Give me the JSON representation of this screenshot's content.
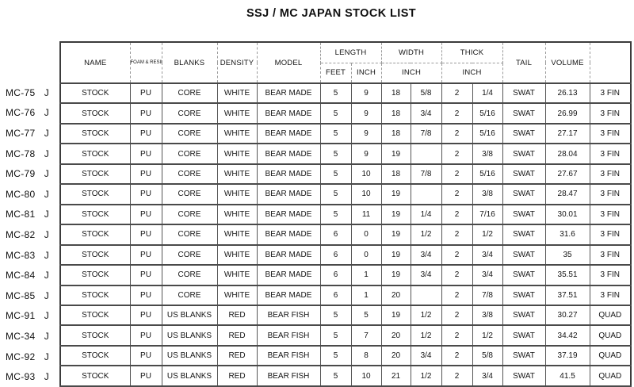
{
  "title": "SSJ / MC JAPAN STOCK LIST",
  "table": {
    "headers": {
      "name": "NAME",
      "foam_resin": "FOAM & RESIN",
      "blanks": "BLANKS",
      "density": "DENSITY",
      "model": "MODEL",
      "length": "LENGTH",
      "width": "WIDTH",
      "thick": "THICK",
      "tail": "TAIL",
      "volume": "VOLUME",
      "fin_col": "",
      "feet": "FEET",
      "length_inch": "INCH",
      "width_inch": "INCH",
      "thick_inch": "INCH"
    },
    "rows": [
      {
        "id": "MC-75",
        "suffix": "J",
        "name": "STOCK",
        "foam": "PU",
        "blanks": "CORE",
        "density": "WHITE",
        "model": "BEAR MADE",
        "feet": "5",
        "inch": "9",
        "width_in": "18",
        "width_fr": "5/8",
        "thick_in": "2",
        "thick_fr": "1/4",
        "tail": "SWAT",
        "volume": "26.13",
        "fin": "3 FIN"
      },
      {
        "id": "MC-76",
        "suffix": "J",
        "name": "STOCK",
        "foam": "PU",
        "blanks": "CORE",
        "density": "WHITE",
        "model": "BEAR MADE",
        "feet": "5",
        "inch": "9",
        "width_in": "18",
        "width_fr": "3/4",
        "thick_in": "2",
        "thick_fr": "5/16",
        "tail": "SWAT",
        "volume": "26.99",
        "fin": "3 FIN"
      },
      {
        "id": "MC-77",
        "suffix": "J",
        "name": "STOCK",
        "foam": "PU",
        "blanks": "CORE",
        "density": "WHITE",
        "model": "BEAR MADE",
        "feet": "5",
        "inch": "9",
        "width_in": "18",
        "width_fr": "7/8",
        "thick_in": "2",
        "thick_fr": "5/16",
        "tail": "SWAT",
        "volume": "27.17",
        "fin": "3 FIN"
      },
      {
        "id": "MC-78",
        "suffix": "J",
        "name": "STOCK",
        "foam": "PU",
        "blanks": "CORE",
        "density": "WHITE",
        "model": "BEAR MADE",
        "feet": "5",
        "inch": "9",
        "width_in": "19",
        "width_fr": "",
        "thick_in": "2",
        "thick_fr": "3/8",
        "tail": "SWAT",
        "volume": "28.04",
        "fin": "3 FIN"
      },
      {
        "id": "MC-79",
        "suffix": "J",
        "name": "STOCK",
        "foam": "PU",
        "blanks": "CORE",
        "density": "WHITE",
        "model": "BEAR MADE",
        "feet": "5",
        "inch": "10",
        "width_in": "18",
        "width_fr": "7/8",
        "thick_in": "2",
        "thick_fr": "5/16",
        "tail": "SWAT",
        "volume": "27.67",
        "fin": "3 FIN"
      },
      {
        "id": "MC-80",
        "suffix": "J",
        "name": "STOCK",
        "foam": "PU",
        "blanks": "CORE",
        "density": "WHITE",
        "model": "BEAR MADE",
        "feet": "5",
        "inch": "10",
        "width_in": "19",
        "width_fr": "",
        "thick_in": "2",
        "thick_fr": "3/8",
        "tail": "SWAT",
        "volume": "28.47",
        "fin": "3 FIN"
      },
      {
        "id": "MC-81",
        "suffix": "J",
        "name": "STOCK",
        "foam": "PU",
        "blanks": "CORE",
        "density": "WHITE",
        "model": "BEAR MADE",
        "feet": "5",
        "inch": "11",
        "width_in": "19",
        "width_fr": "1/4",
        "thick_in": "2",
        "thick_fr": "7/16",
        "tail": "SWAT",
        "volume": "30.01",
        "fin": "3 FIN"
      },
      {
        "id": "MC-82",
        "suffix": "J",
        "name": "STOCK",
        "foam": "PU",
        "blanks": "CORE",
        "density": "WHITE",
        "model": "BEAR MADE",
        "feet": "6",
        "inch": "0",
        "width_in": "19",
        "width_fr": "1/2",
        "thick_in": "2",
        "thick_fr": "1/2",
        "tail": "SWAT",
        "volume": "31.6",
        "fin": "3 FIN"
      },
      {
        "id": "MC-83",
        "suffix": "J",
        "name": "STOCK",
        "foam": "PU",
        "blanks": "CORE",
        "density": "WHITE",
        "model": "BEAR MADE",
        "feet": "6",
        "inch": "0",
        "width_in": "19",
        "width_fr": "3/4",
        "thick_in": "2",
        "thick_fr": "3/4",
        "tail": "SWAT",
        "volume": "35",
        "fin": "3 FIN"
      },
      {
        "id": "MC-84",
        "suffix": "J",
        "name": "STOCK",
        "foam": "PU",
        "blanks": "CORE",
        "density": "WHITE",
        "model": "BEAR MADE",
        "feet": "6",
        "inch": "1",
        "width_in": "19",
        "width_fr": "3/4",
        "thick_in": "2",
        "thick_fr": "3/4",
        "tail": "SWAT",
        "volume": "35.51",
        "fin": "3 FIN"
      },
      {
        "id": "MC-85",
        "suffix": "J",
        "name": "STOCK",
        "foam": "PU",
        "blanks": "CORE",
        "density": "WHITE",
        "model": "BEAR MADE",
        "feet": "6",
        "inch": "1",
        "width_in": "20",
        "width_fr": "",
        "thick_in": "2",
        "thick_fr": "7/8",
        "tail": "SWAT",
        "volume": "37.51",
        "fin": "3 FIN"
      },
      {
        "id": "MC-91",
        "suffix": "J",
        "name": "STOCK",
        "foam": "PU",
        "blanks": "US BLANKS",
        "density": "RED",
        "model": "BEAR FISH",
        "feet": "5",
        "inch": "5",
        "width_in": "19",
        "width_fr": "1/2",
        "thick_in": "2",
        "thick_fr": "3/8",
        "tail": "SWAT",
        "volume": "30.27",
        "fin": "QUAD"
      },
      {
        "id": "MC-34",
        "suffix": "J",
        "name": "STOCK",
        "foam": "PU",
        "blanks": "US BLANKS",
        "density": "RED",
        "model": "BEAR FISH",
        "feet": "5",
        "inch": "7",
        "width_in": "20",
        "width_fr": "1/2",
        "thick_in": "2",
        "thick_fr": "1/2",
        "tail": "SWAT",
        "volume": "34.42",
        "fin": "QUAD"
      },
      {
        "id": "MC-92",
        "suffix": "J",
        "name": "STOCK",
        "foam": "PU",
        "blanks": "US BLANKS",
        "density": "RED",
        "model": "BEAR FISH",
        "feet": "5",
        "inch": "8",
        "width_in": "20",
        "width_fr": "3/4",
        "thick_in": "2",
        "thick_fr": "5/8",
        "tail": "SWAT",
        "volume": "37.19",
        "fin": "QUAD"
      },
      {
        "id": "MC-93",
        "suffix": "J",
        "name": "STOCK",
        "foam": "PU",
        "blanks": "US BLANKS",
        "density": "RED",
        "model": "BEAR FISH",
        "feet": "5",
        "inch": "10",
        "width_in": "21",
        "width_fr": "1/2",
        "thick_in": "2",
        "thick_fr": "3/4",
        "tail": "SWAT",
        "volume": "41.5",
        "fin": "QUAD"
      }
    ]
  }
}
